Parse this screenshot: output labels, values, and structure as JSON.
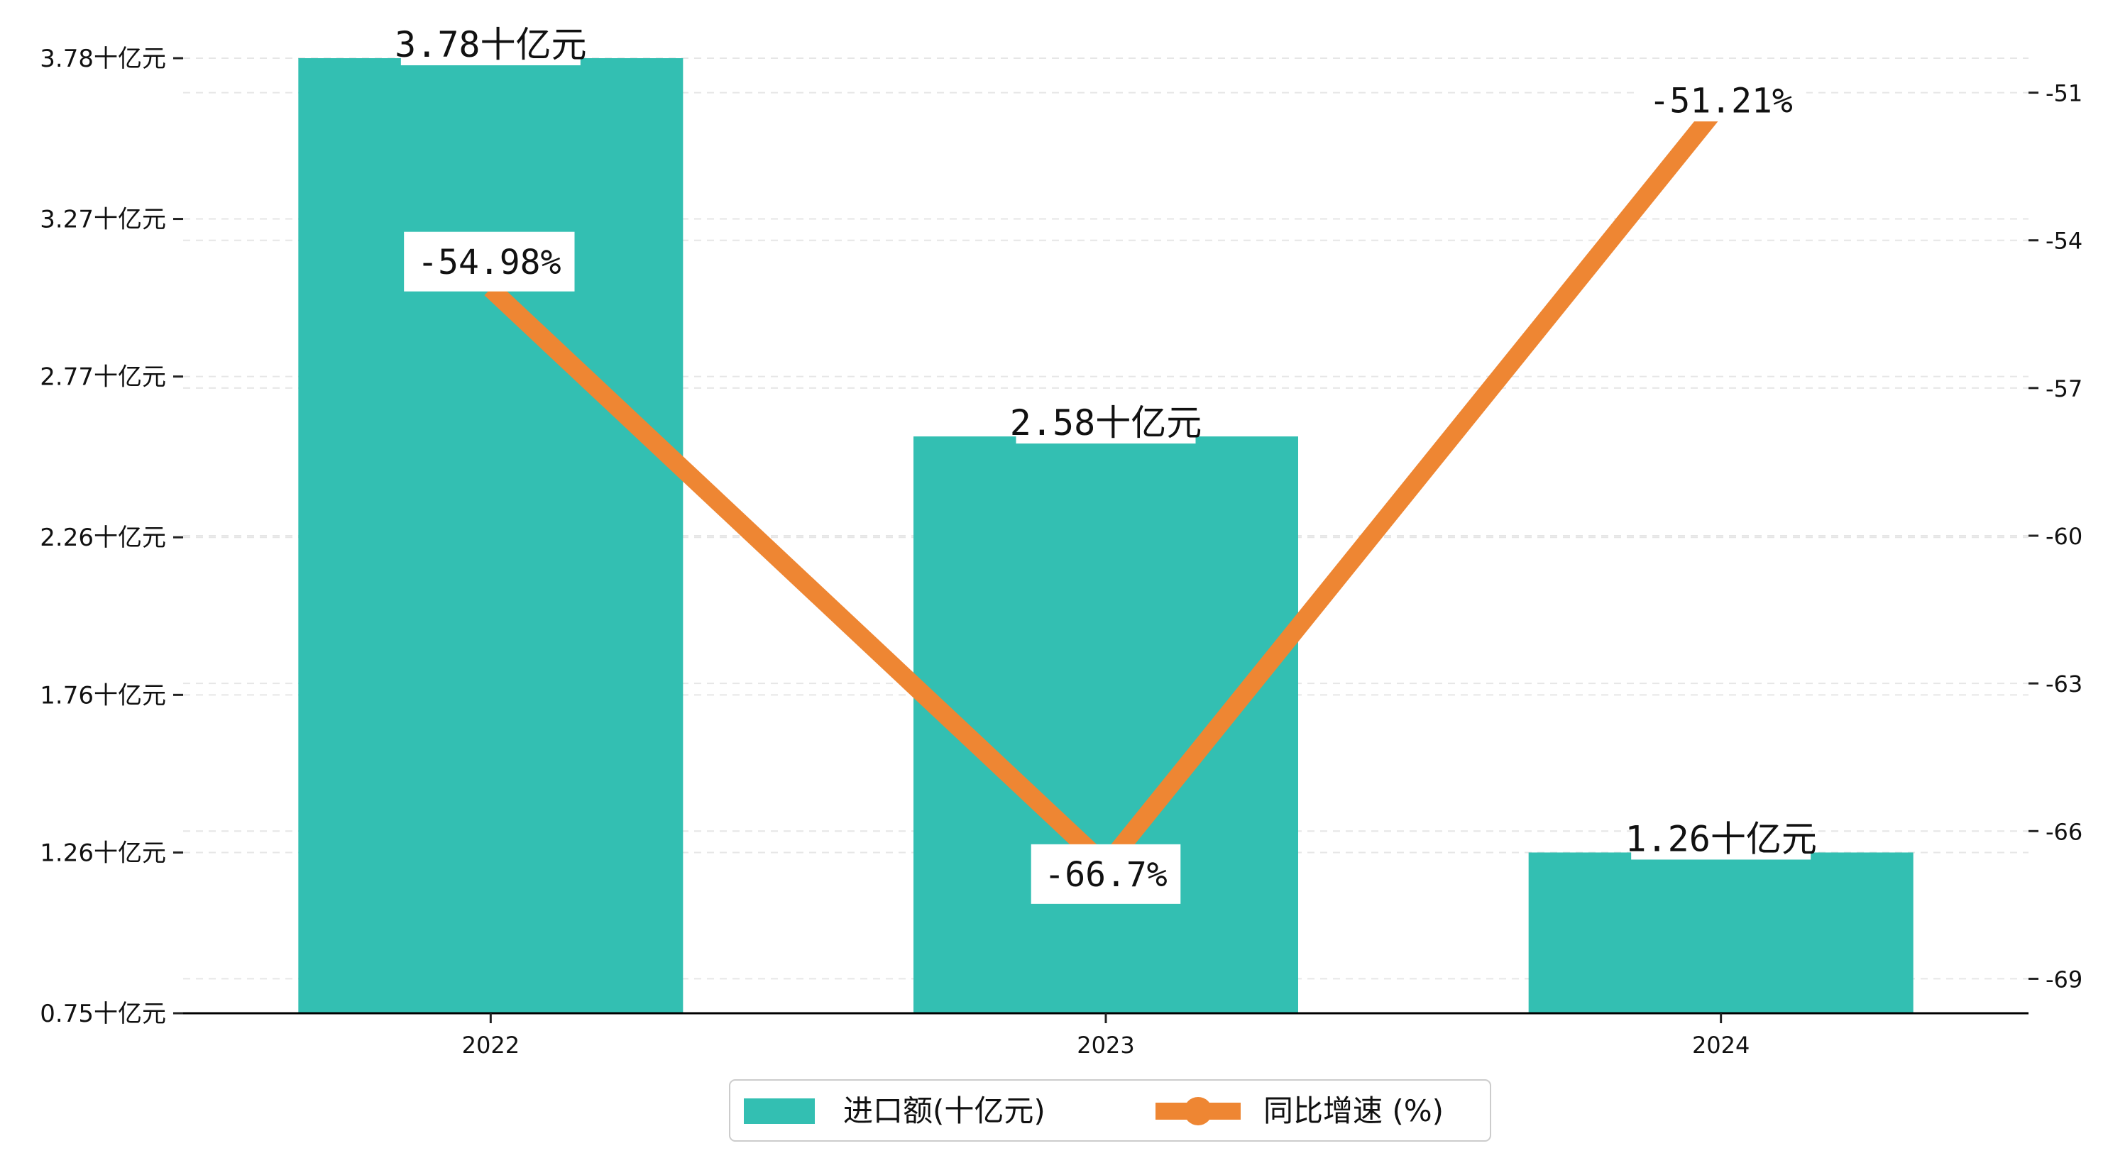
{
  "chart_data": {
    "type": "bar",
    "categories": [
      "2022",
      "2023",
      "2024"
    ],
    "series": [
      {
        "name": "进口额(十亿元)",
        "type": "bar",
        "axis": "left",
        "color": "#33bfb2",
        "values": [
          3.78,
          2.58,
          1.26
        ],
        "labels": [
          "3.78十亿元",
          "2.58十亿元",
          "1.26十亿元"
        ]
      },
      {
        "name": "同比增速 (%)",
        "type": "line",
        "axis": "right",
        "color": "#ee8633",
        "values": [
          -54.98,
          -66.7,
          -51.21
        ],
        "labels": [
          "-54.98%",
          "-66.7%",
          "-51.21%"
        ]
      }
    ],
    "y_left": {
      "ylim": [
        0.75,
        3.78
      ],
      "tick_values": [
        0.75,
        1.26,
        1.76,
        2.26,
        2.77,
        3.27,
        3.78
      ],
      "tick_labels": [
        "0.75十亿元",
        "1.26十亿元",
        "1.76十亿元",
        "2.26十亿元",
        "2.77十亿元",
        "3.27十亿元",
        "3.78十亿元"
      ]
    },
    "y_right": {
      "ylim": [
        -69.7,
        -50.3
      ],
      "tick_values": [
        -69,
        -66,
        -63,
        -60,
        -57,
        -54,
        -51
      ],
      "tick_labels": [
        "-69",
        "-66",
        "-63",
        "-60",
        "-57",
        "-54",
        "-51"
      ]
    },
    "title": "",
    "xlabel": "",
    "ylabel": "",
    "grid": true,
    "legend_position": "bottom-center"
  }
}
